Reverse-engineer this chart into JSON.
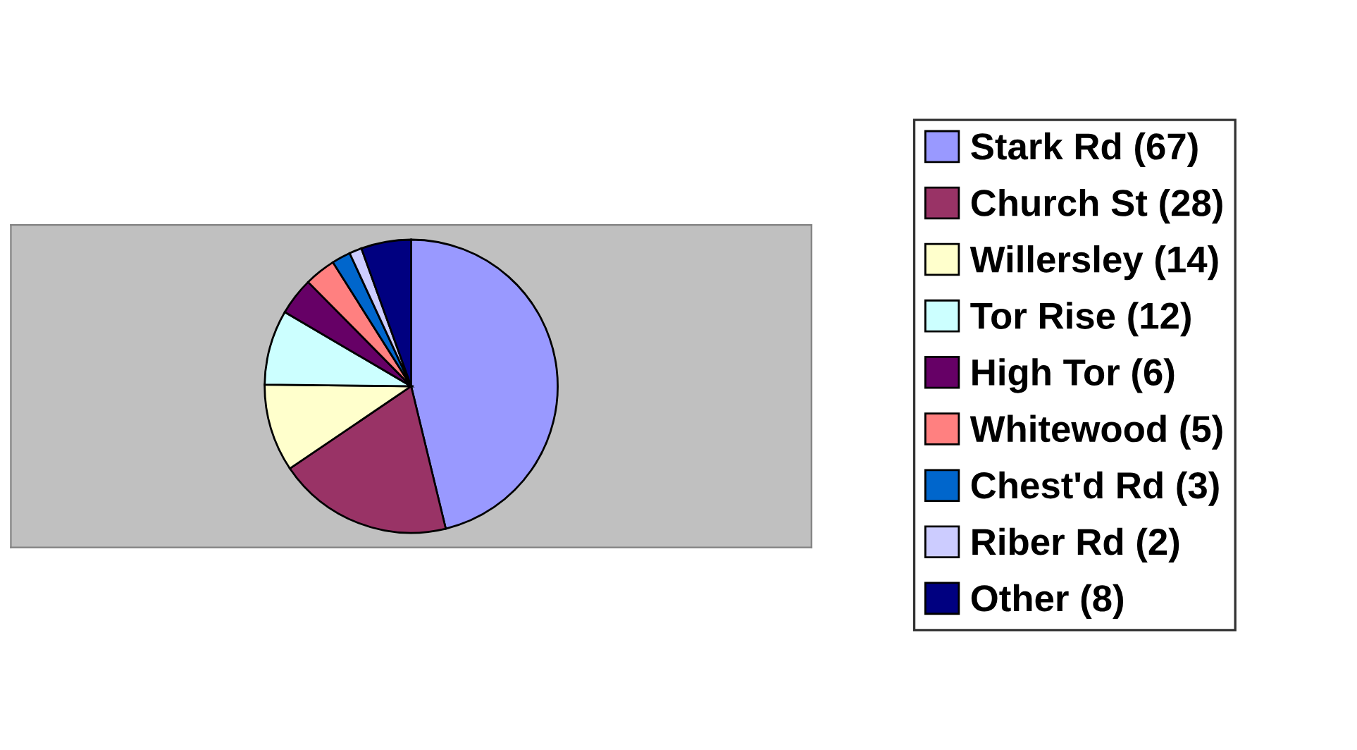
{
  "chart_data": {
    "type": "pie",
    "categories": [
      "Stark Rd (67)",
      "Church St (28)",
      "Willersley (14)",
      "Tor Rise (12)",
      "High Tor (6)",
      "Whitewood (5)",
      "Chest'd Rd (3)",
      "Riber Rd (2)",
      "Other (8)"
    ],
    "values": [
      67,
      28,
      14,
      12,
      6,
      5,
      3,
      2,
      8
    ],
    "colors": [
      "#9999ff",
      "#993366",
      "#ffffcc",
      "#ccffff",
      "#660066",
      "#ff8080",
      "#0066cc",
      "#ccccff",
      "#000080"
    ],
    "legend": "right"
  }
}
